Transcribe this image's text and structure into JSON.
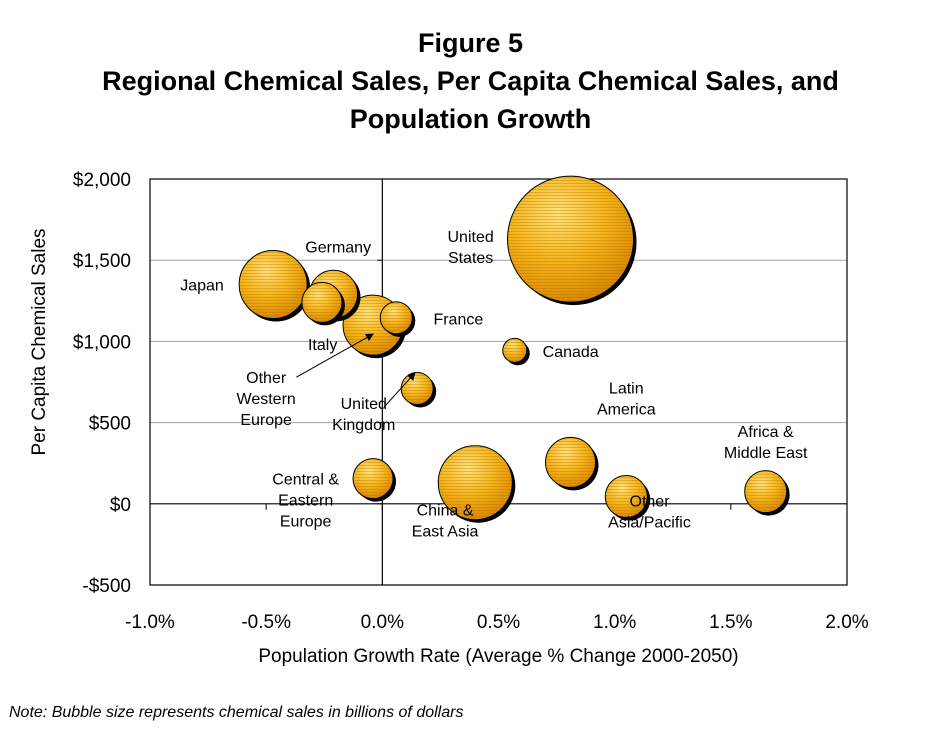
{
  "title": {
    "line1": "Figure 5",
    "line2": "Regional Chemical Sales, Per Capita Chemical Sales, and",
    "line3": "Population Growth"
  },
  "note": "Note: Bubble size represents chemical sales in billions of dollars",
  "chart_data": {
    "type": "scatter",
    "xlabel": "Population Growth Rate (Average % Change 2000-2050)",
    "ylabel": "Per Capita Chemical Sales",
    "xlim": [
      -1.0,
      2.0
    ],
    "ylim": [
      -500,
      2000
    ],
    "xticks": [
      -1.0,
      -0.5,
      0.0,
      0.5,
      1.0,
      1.5,
      2.0
    ],
    "xtick_labels": [
      "-1.0%",
      "-0.5%",
      "0.0%",
      "0.5%",
      "1.0%",
      "1.5%",
      "2.0%"
    ],
    "yticks": [
      -500,
      0,
      500,
      1000,
      1500,
      2000
    ],
    "ytick_labels": [
      "-$500",
      "$0",
      "$500",
      "$1,000",
      "$1,500",
      "$2,000"
    ],
    "grid": "horizontal",
    "colors": {
      "bubble_light": "#ffe27a",
      "bubble_mid": "#f5b51a",
      "bubble_dark": "#d98a00",
      "grid": "#a0a0a0"
    },
    "points": [
      {
        "label": [
          "Japan"
        ],
        "x": -0.47,
        "y": 1350,
        "size": 34,
        "label_x": -0.87,
        "label_y": 1350,
        "anchor": "start"
      },
      {
        "label": [
          "Germany"
        ],
        "x": -0.21,
        "y": 1290,
        "size": 24,
        "label_x": -0.19,
        "label_y": 1585,
        "anchor": "middle"
      },
      {
        "label": [
          "Italy"
        ],
        "x": -0.26,
        "y": 1240,
        "size": 20,
        "label_x": -0.32,
        "label_y": 985,
        "anchor": "start"
      },
      {
        "label": [
          "Other",
          "Western",
          "Europe"
        ],
        "x": -0.04,
        "y": 1100,
        "size": 30,
        "label_x": -0.5,
        "label_y": 650,
        "anchor": "middle"
      },
      {
        "label": [
          "France"
        ],
        "x": 0.06,
        "y": 1145,
        "size": 16,
        "label_x": 0.22,
        "label_y": 1140,
        "anchor": "start"
      },
      {
        "label": [
          "United",
          "States"
        ],
        "x": 0.81,
        "y": 1630,
        "size": 63,
        "label_x": 0.38,
        "label_y": 1585,
        "anchor": "middle"
      },
      {
        "label": [
          "Canada"
        ],
        "x": 0.57,
        "y": 945,
        "size": 12,
        "label_x": 0.69,
        "label_y": 940,
        "anchor": "start"
      },
      {
        "label": [
          "United",
          "Kingdom"
        ],
        "x": 0.15,
        "y": 710,
        "size": 16,
        "label_x": -0.08,
        "label_y": 555,
        "anchor": "middle"
      },
      {
        "label": [
          "Latin",
          "America"
        ],
        "x": 0.81,
        "y": 255,
        "size": 25,
        "label_x": 1.05,
        "label_y": 650,
        "anchor": "middle"
      },
      {
        "label": [
          "Africa &",
          "Middle East"
        ],
        "x": 1.65,
        "y": 75,
        "size": 21,
        "label_x": 1.65,
        "label_y": 385,
        "anchor": "middle"
      },
      {
        "label": [
          "Central &",
          "Eastern",
          "Europe"
        ],
        "x": -0.04,
        "y": 155,
        "size": 20,
        "label_x": -0.33,
        "label_y": 25,
        "anchor": "middle"
      },
      {
        "label": [
          "China &",
          "East Asia"
        ],
        "x": 0.4,
        "y": 130,
        "size": 37,
        "label_x": 0.27,
        "label_y": -100,
        "anchor": "middle"
      },
      {
        "label": [
          "Other",
          "Asia/Pacific"
        ],
        "x": 1.05,
        "y": 45,
        "size": 21,
        "label_x": 1.15,
        "label_y": -45,
        "anchor": "middle"
      }
    ],
    "arrows": [
      {
        "from": [
          -0.37,
          780
        ],
        "to": [
          -0.04,
          1045
        ]
      },
      {
        "from": [
          0.01,
          600
        ],
        "to": [
          0.14,
          805
        ]
      }
    ]
  }
}
